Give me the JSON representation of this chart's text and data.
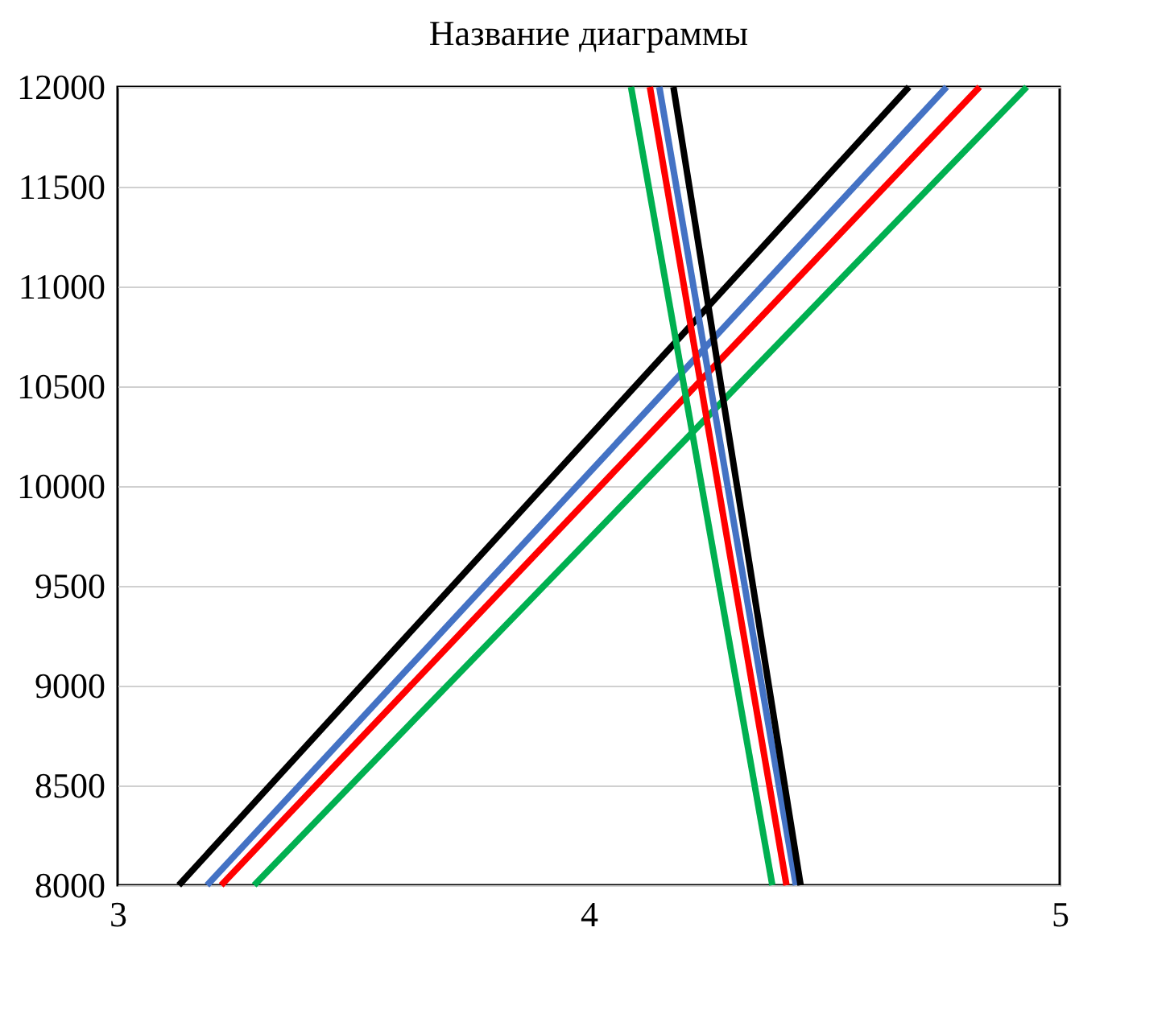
{
  "chart_data": {
    "type": "line",
    "title": "Название диаграммы",
    "xlim": [
      3,
      5
    ],
    "xticks": [
      3,
      4,
      5
    ],
    "ylim": [
      8000,
      12000
    ],
    "yticks": [
      8000,
      8500,
      9000,
      9500,
      10000,
      10500,
      11000,
      11500,
      12000
    ],
    "grid": "y",
    "legend": false,
    "series": [
      {
        "color": "#000000",
        "x": [
          3.13,
          4.68
        ],
        "values": [
          8000,
          12000
        ]
      },
      {
        "color": "#4472c4",
        "x": [
          3.19,
          4.76
        ],
        "values": [
          8000,
          12000
        ]
      },
      {
        "color": "#ff0000",
        "x": [
          3.22,
          4.83
        ],
        "values": [
          8000,
          12000
        ]
      },
      {
        "color": "#00b050",
        "x": [
          3.29,
          4.93
        ],
        "values": [
          8000,
          12000
        ]
      },
      {
        "color": "#00b050",
        "x": [
          4.09,
          4.39
        ],
        "values": [
          12000,
          8000
        ]
      },
      {
        "color": "#ff0000",
        "x": [
          4.13,
          4.42
        ],
        "values": [
          12000,
          8000
        ]
      },
      {
        "color": "#4472c4",
        "x": [
          4.15,
          4.44
        ],
        "values": [
          12000,
          8000
        ]
      },
      {
        "color": "#000000",
        "x": [
          4.18,
          4.45
        ],
        "values": [
          12000,
          8000
        ]
      }
    ]
  }
}
